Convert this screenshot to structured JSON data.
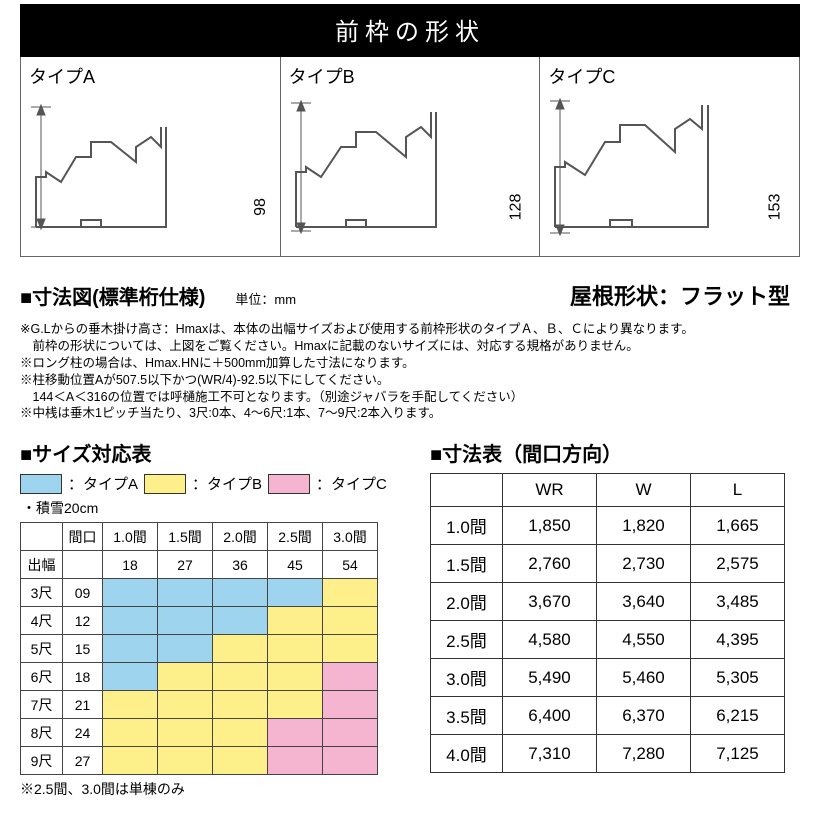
{
  "banner": "前枠の形状",
  "types": [
    {
      "label": "タイプA",
      "dim": "98"
    },
    {
      "label": "タイプB",
      "dim": "128"
    },
    {
      "label": "タイプC",
      "dim": "153"
    }
  ],
  "subhead": "■寸法図(標準桁仕様)",
  "unit": "単位：mm",
  "roof": "屋根形状：フラット型",
  "notes": [
    "※G.Lからの垂木掛け高さ：Hmaxは、本体の出幅サイズおよび使用する前枠形状のタイプＡ、Ｂ、Ｃにより異なります。",
    "　前枠の形状については、上図をご覧ください。Hmaxに記載のないサイズには、対応する規格がありません。",
    "※ロング柱の場合は、Hmax.HNに＋500mm加算した寸法になります。",
    "※柱移動位置Aが507.5以下かつ(WR/4)-92.5以下にしてください。",
    "　144＜A＜316の位置では呼樋施工不可となります。（別途ジャバラを手配してください）",
    "※中桟は垂木1ピッチ当たり、3尺:0本、4～6尺:1本、7～9尺:2本入ります。"
  ],
  "size_title": "■サイズ対応表",
  "legend": {
    "a_label": "：タイプA",
    "a_color": "#9fd4ef",
    "b_label": "：タイプB",
    "b_color": "#fdf08b",
    "c_label": "：タイプC",
    "c_color": "#f5b5d1"
  },
  "snow": "・積雪20cm",
  "grid": {
    "col_head": "間口",
    "row_head": "出幅",
    "cols": [
      "1.0間",
      "1.5間",
      "2.0間",
      "2.5間",
      "3.0間"
    ],
    "col_nums": [
      "18",
      "27",
      "36",
      "45",
      "54"
    ],
    "rows": [
      {
        "label": "3尺",
        "num": "09",
        "cells": [
          "a",
          "a",
          "a",
          "a",
          "b"
        ]
      },
      {
        "label": "4尺",
        "num": "12",
        "cells": [
          "a",
          "a",
          "a",
          "b",
          "b"
        ]
      },
      {
        "label": "5尺",
        "num": "15",
        "cells": [
          "a",
          "a",
          "b",
          "b",
          "b"
        ]
      },
      {
        "label": "6尺",
        "num": "18",
        "cells": [
          "a",
          "b",
          "b",
          "b",
          "c"
        ]
      },
      {
        "label": "7尺",
        "num": "21",
        "cells": [
          "b",
          "b",
          "b",
          "b",
          "c"
        ]
      },
      {
        "label": "8尺",
        "num": "24",
        "cells": [
          "b",
          "b",
          "b",
          "c",
          "c"
        ]
      },
      {
        "label": "9尺",
        "num": "27",
        "cells": [
          "b",
          "b",
          "b",
          "c",
          "c"
        ]
      }
    ],
    "col_w": {
      "label": 42,
      "num": 40,
      "cell": 55
    }
  },
  "grid_foot": "※2.5間、3.0間は単棟のみ",
  "dim_title": "■寸法表（間口方向）",
  "dimtable": {
    "headers": [
      "",
      "WR",
      "W",
      "L"
    ],
    "rows": [
      [
        "1.0間",
        "1,850",
        "1,820",
        "1,665"
      ],
      [
        "1.5間",
        "2,760",
        "2,730",
        "2,575"
      ],
      [
        "2.0間",
        "3,670",
        "3,640",
        "3,485"
      ],
      [
        "2.5間",
        "4,580",
        "4,550",
        "4,395"
      ],
      [
        "3.0間",
        "5,490",
        "5,460",
        "5,305"
      ],
      [
        "3.5間",
        "6,400",
        "6,370",
        "6,215"
      ],
      [
        "4.0間",
        "7,310",
        "7,280",
        "7,125"
      ]
    ]
  },
  "colors": {
    "a": "#9fd4ef",
    "b": "#fdf08b",
    "c": "#f5b5d1",
    "line": "#555555"
  }
}
